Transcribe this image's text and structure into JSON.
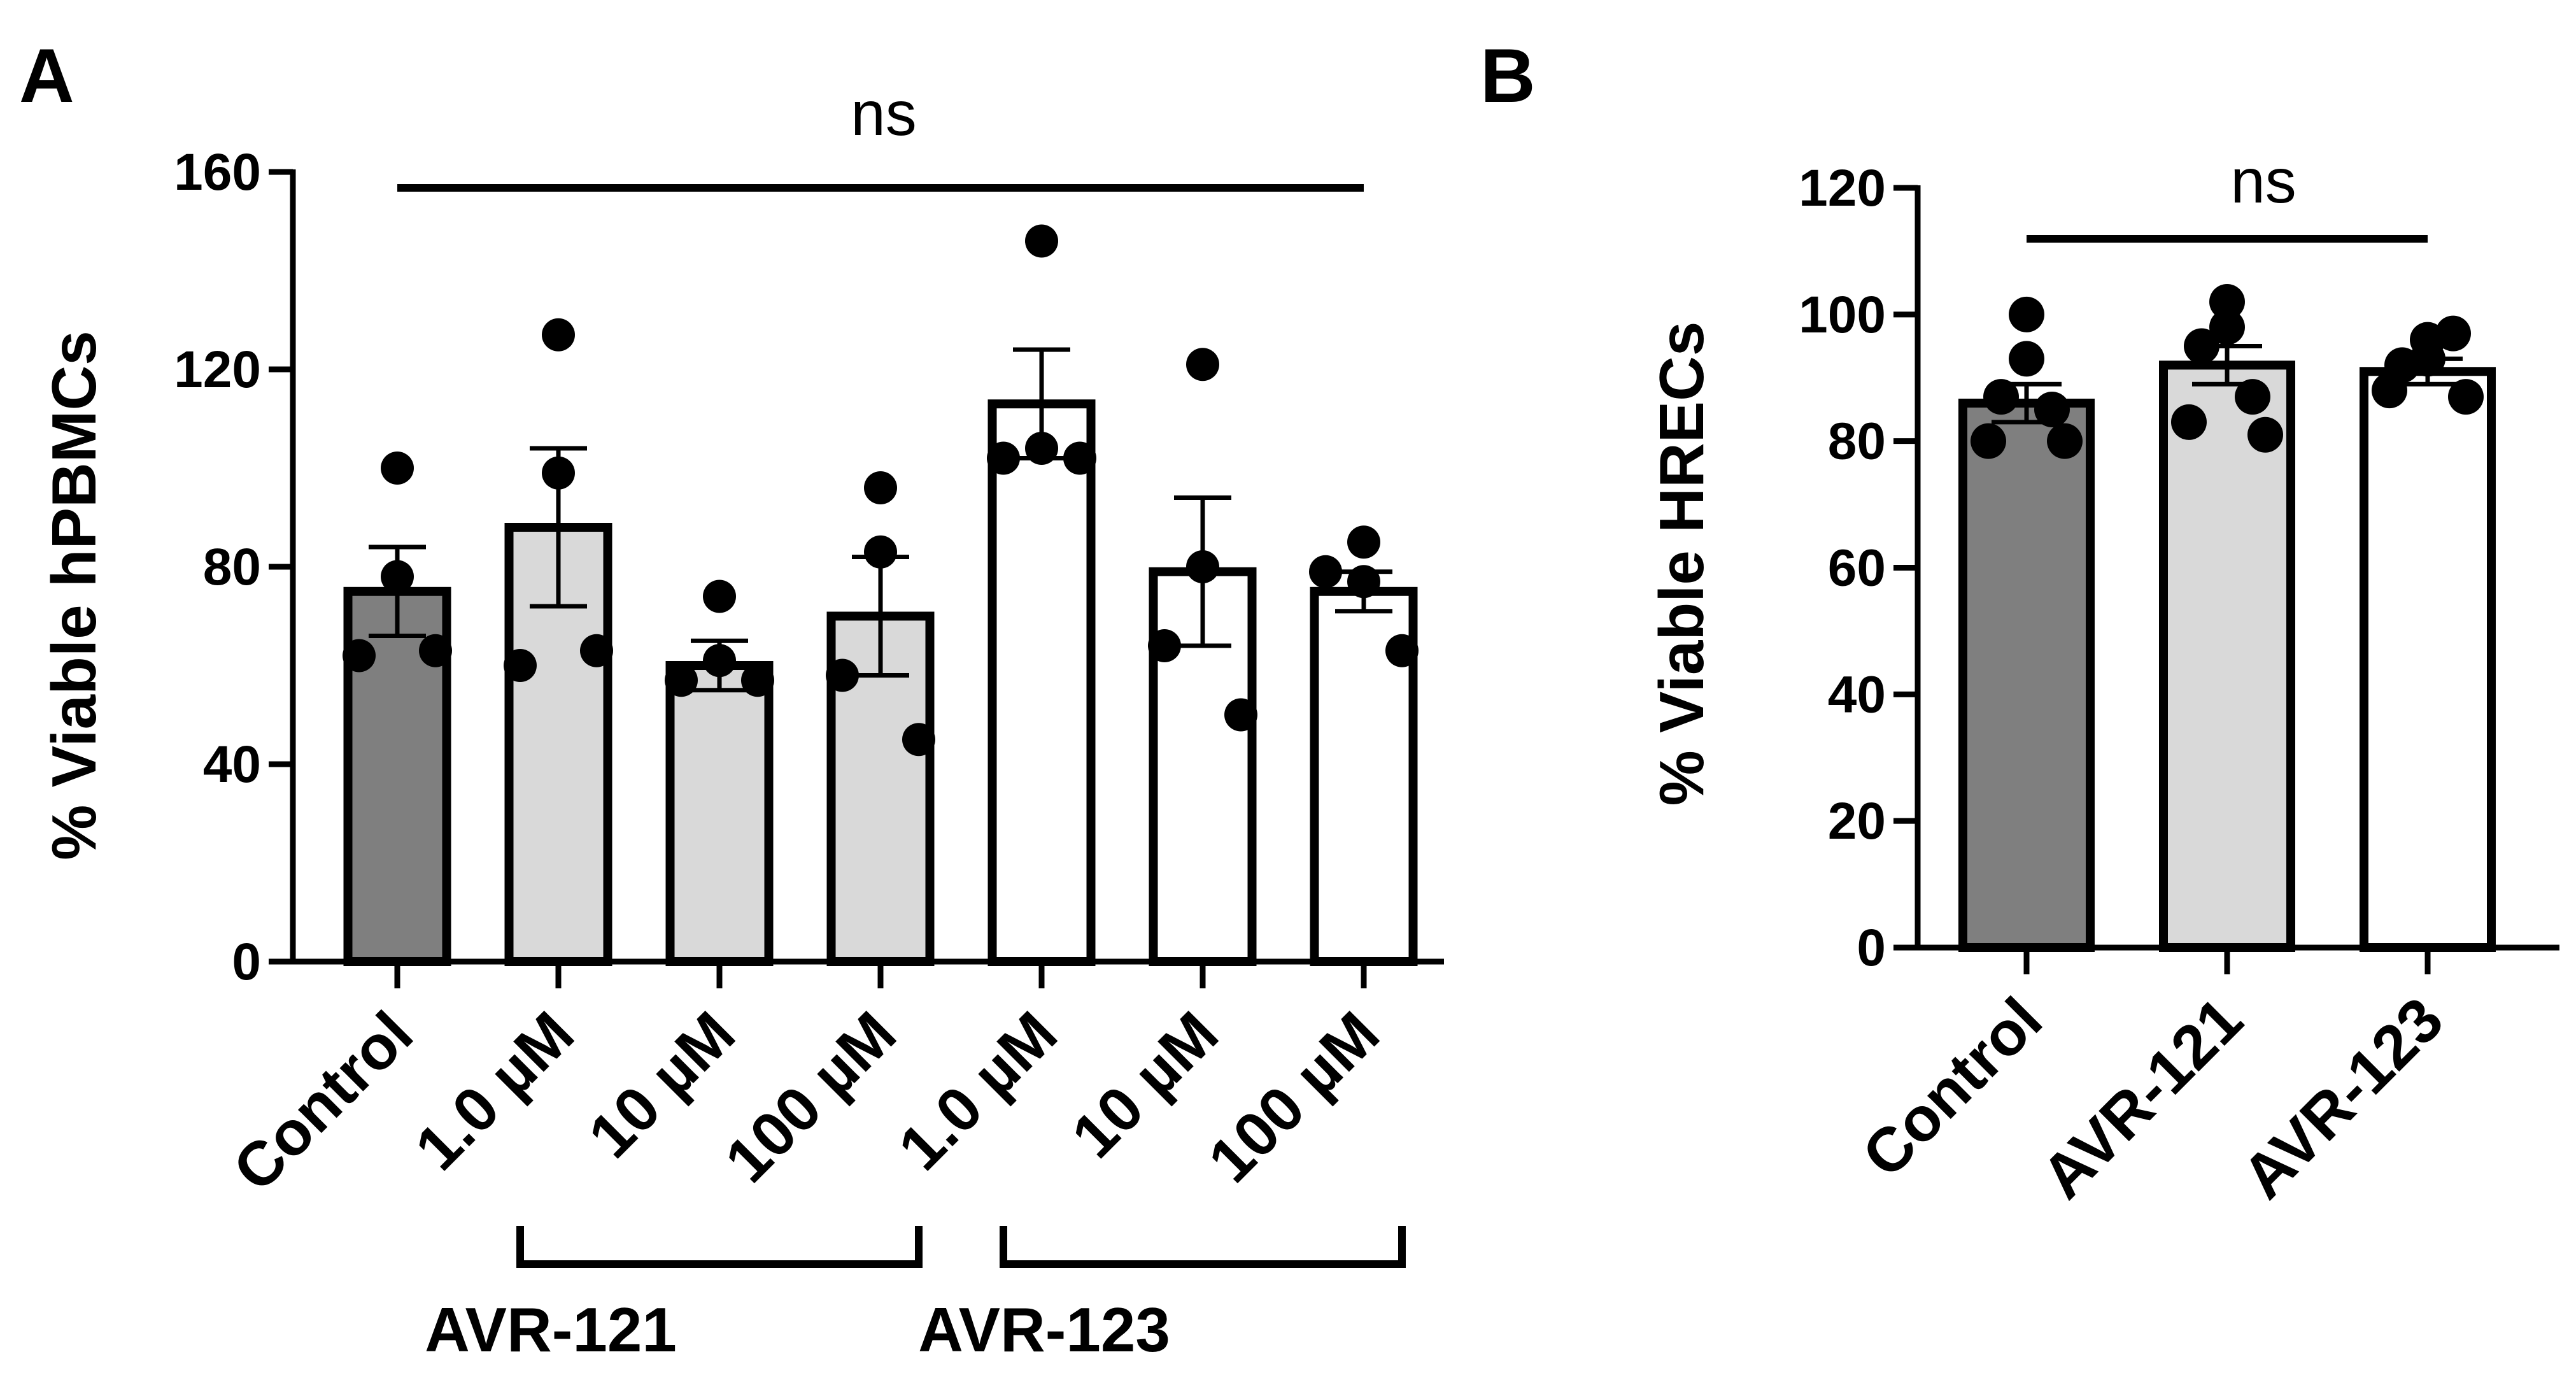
{
  "chart_data": [
    {
      "type": "bar",
      "panel": "A",
      "ylabel": "% Viable hPBMCs",
      "ylim": [
        0,
        160
      ],
      "yticks": [
        0,
        40,
        80,
        120,
        160
      ],
      "categories": [
        "Control",
        "1.0 µM",
        "10 µM",
        "100 µM",
        "1.0 µM",
        "10 µM",
        "100 µM"
      ],
      "groups": [
        {
          "label": "AVR-121",
          "from": 1,
          "to": 3
        },
        {
          "label": "AVR-123",
          "from": 4,
          "to": 6
        }
      ],
      "significance": "ns",
      "series": [
        {
          "name": "mean",
          "values": [
            75,
            88,
            60,
            70,
            113,
            79,
            75
          ]
        },
        {
          "name": "sem",
          "values": [
            9,
            16,
            5,
            12,
            11,
            15,
            4
          ]
        }
      ],
      "points": [
        [
          100,
          78,
          62,
          63
        ],
        [
          127,
          99,
          60,
          63
        ],
        [
          74,
          61,
          57,
          57
        ],
        [
          96,
          83,
          58,
          45
        ],
        [
          146,
          104,
          102,
          102
        ],
        [
          121,
          80,
          64,
          50
        ],
        [
          85,
          77,
          79,
          63
        ]
      ],
      "bar_colors": [
        "#7f7f7f",
        "#d9d9d9",
        "#d9d9d9",
        "#d9d9d9",
        "#ffffff",
        "#ffffff",
        "#ffffff"
      ]
    },
    {
      "type": "bar",
      "panel": "B",
      "ylabel": "% Viable HRECs",
      "ylim": [
        0,
        120
      ],
      "yticks": [
        0,
        20,
        40,
        60,
        80,
        100,
        120
      ],
      "categories": [
        "Control",
        "AVR-121",
        "AVR-123"
      ],
      "significance": "ns",
      "series": [
        {
          "name": "mean",
          "values": [
            86,
            92,
            91
          ]
        },
        {
          "name": "sem",
          "values": [
            3,
            3,
            2
          ]
        }
      ],
      "points": [
        [
          100,
          93,
          87,
          85,
          80,
          80
        ],
        [
          98,
          102,
          95,
          87,
          83,
          81
        ],
        [
          96,
          93,
          92,
          97,
          88,
          87
        ]
      ],
      "bar_colors": [
        "#7f7f7f",
        "#d9d9d9",
        "#ffffff"
      ]
    }
  ]
}
